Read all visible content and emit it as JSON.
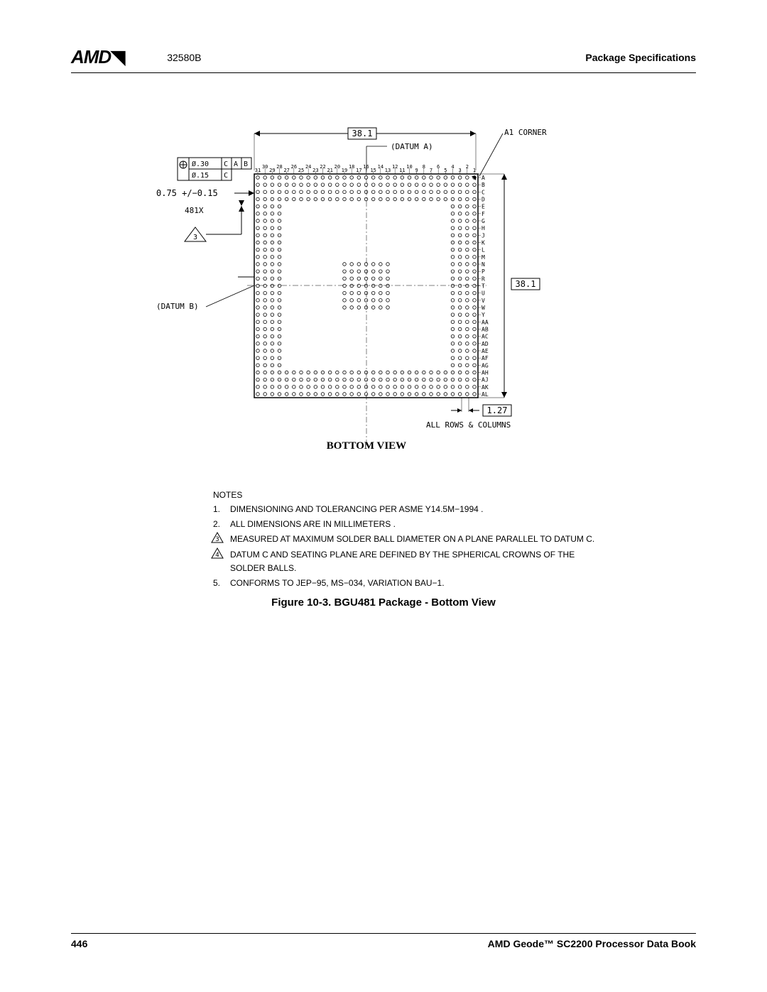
{
  "header": {
    "logo": "AMD",
    "docnum": "32580B",
    "right": "Package Specifications"
  },
  "diagram": {
    "dim_top": "38.1",
    "dim_right": "38.1",
    "pitch": "1.27",
    "datum_a": "(DATUM A)",
    "datum_b": "(DATUM B)",
    "a1_corner": "A1 CORNER",
    "ball_tol": "0.75 +/−0.15",
    "count": "481X",
    "gd_t_line1_dia": "Ø.30",
    "gd_t_line1_refs": "C A B",
    "gd_t_line2_dia": "Ø.15",
    "gd_t_line2_refs": "C",
    "tri3": "3",
    "all_rows": "ALL ROWS & COLUMNS",
    "bottom_view": "BOTTOM VIEW",
    "cols": [
      "31",
      "30",
      "29",
      "28",
      "27",
      "26",
      "25",
      "24",
      "23",
      "22",
      "21",
      "20",
      "19",
      "18",
      "17",
      "16",
      "15",
      "14",
      "13",
      "12",
      "11",
      "10",
      "9",
      "8",
      "7",
      "6",
      "5",
      "4",
      "3",
      "2",
      "1"
    ],
    "rows": [
      "A",
      "B",
      "C",
      "D",
      "E",
      "F",
      "G",
      "H",
      "J",
      "K",
      "L",
      "M",
      "N",
      "P",
      "R",
      "T",
      "U",
      "V",
      "W",
      "Y",
      "AA",
      "AB",
      "AC",
      "AD",
      "AE",
      "AF",
      "AG",
      "AH",
      "AJ",
      "AK",
      "AL"
    ]
  },
  "notes": {
    "title": "NOTES",
    "items": [
      {
        "num": "1.",
        "tri": false,
        "text": "DIMENSIONING AND TOLERANCING PER ASME Y14.5M−1994 ."
      },
      {
        "num": "2.",
        "tri": false,
        "text": "ALL DIMENSIONS ARE IN MILLIMETERS ."
      },
      {
        "num": "3",
        "tri": true,
        "text": "MEASURED AT MAXIMUM SOLDER BALL DIAMETER ON A PLANE PARALLEL TO DATUM C."
      },
      {
        "num": "4",
        "tri": true,
        "text": "DATUM C AND SEATING PLANE ARE DEFINED BY THE SPHERICAL CROWNS OF THE SOLDER BALLS."
      },
      {
        "num": "5.",
        "tri": false,
        "text": "CONFORMS TO JEP−95, MS−034, VARIATION BAU−1."
      }
    ]
  },
  "caption": "Figure 10-3.  BGU481 Package - Bottom View",
  "footer": {
    "page": "446",
    "book": "AMD Geode™ SC2200  Processor Data Book"
  }
}
